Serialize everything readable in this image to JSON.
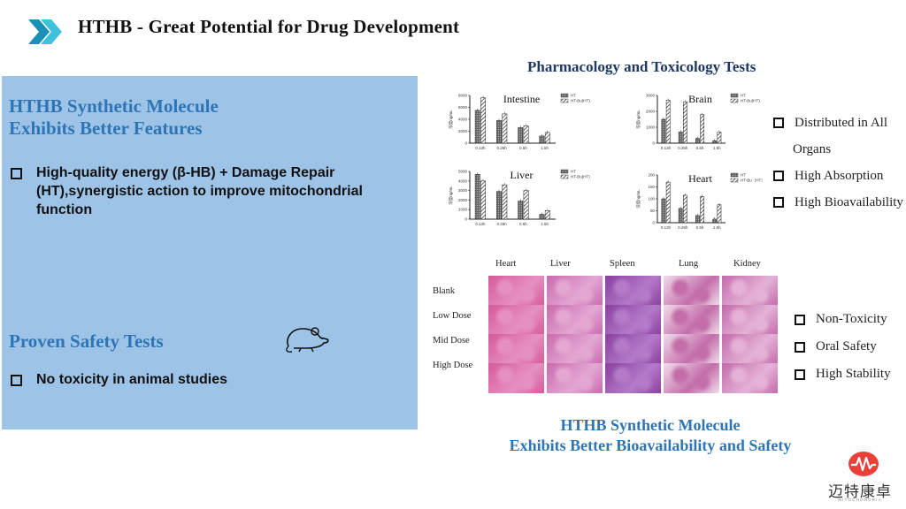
{
  "header": {
    "title": "HTHB - Great Potential for Drug Development"
  },
  "left": {
    "heading1": [
      "HTHB Synthetic Molecule",
      "Exhibits Better Features"
    ],
    "bullet1": [
      "High-quality energy (β-HB) + Damage Repair",
      "(HT),synergistic action to improve mitochondrial",
      "function"
    ],
    "heading2": "Proven Safety Tests",
    "bullet2": "No toxicity in animal studies"
  },
  "right": {
    "pharm_title": "Pharmacology and Toxicology Tests",
    "charts": [
      {
        "name": "Intestine",
        "ylabel": "浓度ng/mL",
        "yticks": [
          "0",
          "2000",
          "4000",
          "6000",
          "8000"
        ],
        "legend": [
          "HT",
          "HT-Bu(HT)"
        ],
        "categories": [
          "0.13h",
          "0.25h",
          "0.5h",
          "1.5h"
        ],
        "HT": [
          5500,
          3800,
          2600,
          1200
        ],
        "HTBu": [
          7600,
          4900,
          2900,
          1800
        ],
        "ymax": 8000
      },
      {
        "name": "Brain",
        "ylabel": "浓度ng/mL",
        "yticks": [
          "0",
          "1000",
          "2000",
          "3000"
        ],
        "legend": [
          "HT",
          "HT-Bu(HT)"
        ],
        "categories": [
          "0.13h",
          "0.25h",
          "0.5h",
          "1.5h"
        ],
        "HT": [
          1500,
          700,
          300,
          150
        ],
        "HTBu": [
          2700,
          2600,
          1800,
          700
        ],
        "ymax": 3000
      },
      {
        "name": "Liver",
        "ylabel": "浓度ng/mL",
        "yticks": [
          "0",
          "1000",
          "2000",
          "3000",
          "4000",
          "5000"
        ],
        "legend": [
          "HT",
          "HT-Bu(HT)"
        ],
        "categories": [
          "0.13h",
          "0.25h",
          "0.5h",
          "1.5h"
        ],
        "HT": [
          4700,
          2900,
          1900,
          500
        ],
        "HTBu": [
          4000,
          3600,
          3000,
          900
        ],
        "ymax": 5000
      },
      {
        "name": "Heart",
        "ylabel": "浓度ng/mL",
        "yticks": [
          "0",
          "50",
          "100",
          "150",
          "200"
        ],
        "legend": [
          "HT",
          "HT-Bu（HT）"
        ],
        "categories": [
          "0.13h",
          "0.25h",
          "0.5h",
          "1.5h"
        ],
        "HT": [
          100,
          60,
          30,
          15
        ],
        "HTBu": [
          170,
          115,
          110,
          75
        ],
        "ymax": 200
      }
    ],
    "pk_bullets": [
      "Distributed in All",
      "Organs",
      "High Absorption",
      "High Bioavailability"
    ],
    "tissue_cols": [
      "Heart",
      "Liver",
      "Spleen",
      "Lung",
      "Kidney"
    ],
    "tissue_rows": [
      "Blank",
      "Low Dose",
      "Mid Dose",
      "High Dose"
    ],
    "tox_bullets": [
      "Non-Toxicity",
      "Oral Safety",
      "High Stability"
    ],
    "bottom_title": [
      "HTHB Synthetic Molecule",
      "Exhibits Better Bioavailability and Safety"
    ]
  },
  "logo": {
    "text": "迈特康卓",
    "sub": "MITOCHONDRIA"
  },
  "colors": {
    "panel": "#9dc3e6",
    "heading": "#2e75b6",
    "chevron": "#2aa8c9",
    "logo": "#e8413a"
  }
}
